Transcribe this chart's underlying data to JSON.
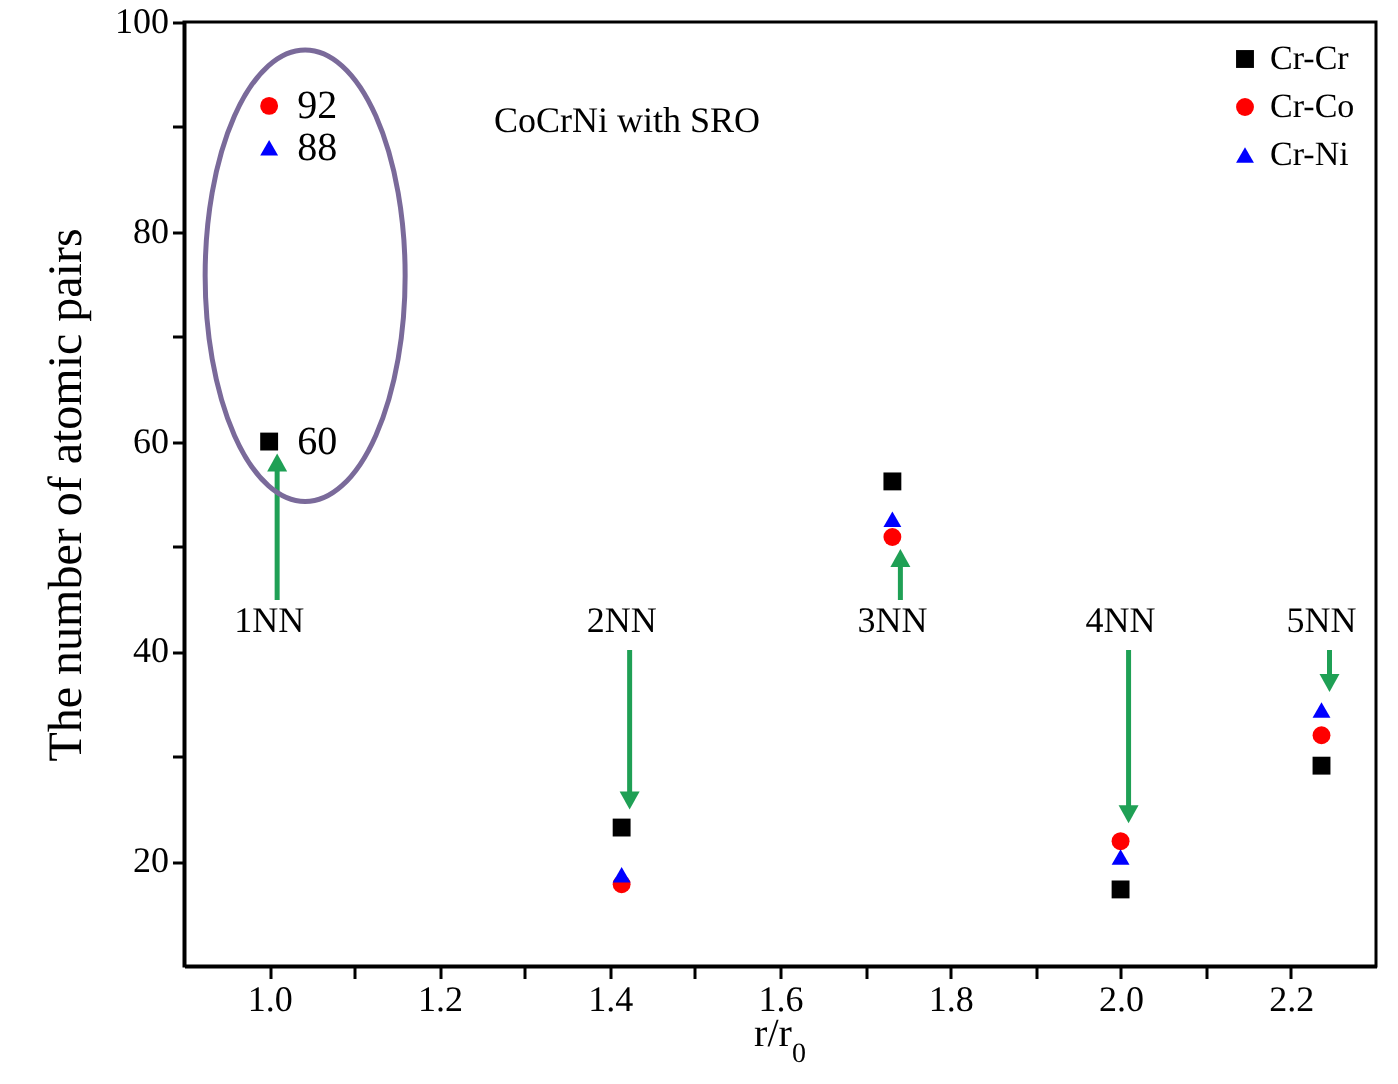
{
  "chart_data": {
    "type": "scatter",
    "xlabel": "r/r$_{0}$",
    "ylabel": "The number of atomic pairs",
    "x": [
      1.0,
      1.414,
      1.732,
      2.0,
      2.236
    ],
    "series": [
      {
        "name": "Cr-Cr",
        "color": "#000000",
        "marker": "square",
        "values": [
          60,
          23.2,
          56.2,
          17.3,
          29.1
        ],
        "value_labels": [
          "60",
          null,
          null,
          null,
          null
        ]
      },
      {
        "name": "Cr-Co",
        "color": "#ff0000",
        "marker": "circle",
        "values": [
          92,
          17.8,
          50.9,
          21.9,
          32.0
        ],
        "value_labels": [
          "92",
          null,
          null,
          null,
          null
        ]
      },
      {
        "name": "Cr-Ni",
        "color": "#0000ff",
        "marker": "triangle",
        "values": [
          88,
          18.7,
          52.6,
          20.4,
          34.4
        ],
        "value_labels": [
          "88",
          null,
          null,
          null,
          null
        ]
      }
    ],
    "annotations": [
      "CoCrNi with SRO",
      "1NN",
      "2NN",
      "3NN",
      "4NN",
      "5NN"
    ],
    "xlim": [
      0.9,
      2.3
    ],
    "xticks": [
      {
        "value": 1.0,
        "label": "1.0"
      },
      {
        "value": 1.1,
        "label": null
      },
      {
        "value": 1.2,
        "label": "1.2"
      },
      {
        "value": 1.3,
        "label": null
      },
      {
        "value": 1.4,
        "label": "1.4"
      },
      {
        "value": 1.5,
        "label": null
      },
      {
        "value": 1.6,
        "label": "1.6"
      },
      {
        "value": 1.7,
        "label": null
      },
      {
        "value": 1.8,
        "label": "1.8"
      },
      {
        "value": 1.9,
        "label": null
      },
      {
        "value": 2.0,
        "label": "2.0"
      },
      {
        "value": 2.1,
        "label": null
      },
      {
        "value": 2.2,
        "label": "2.2"
      }
    ],
    "ylim": [
      10,
      100
    ],
    "yticks": [
      20,
      {
        "value": 30,
        "label": null
      },
      40,
      {
        "value": 50,
        "label": null
      },
      60,
      {
        "value": 70,
        "label": null
      },
      80,
      {
        "value": 90,
        "label": null
      },
      100
    ],
    "grid": false,
    "legend": "top right"
  }
}
